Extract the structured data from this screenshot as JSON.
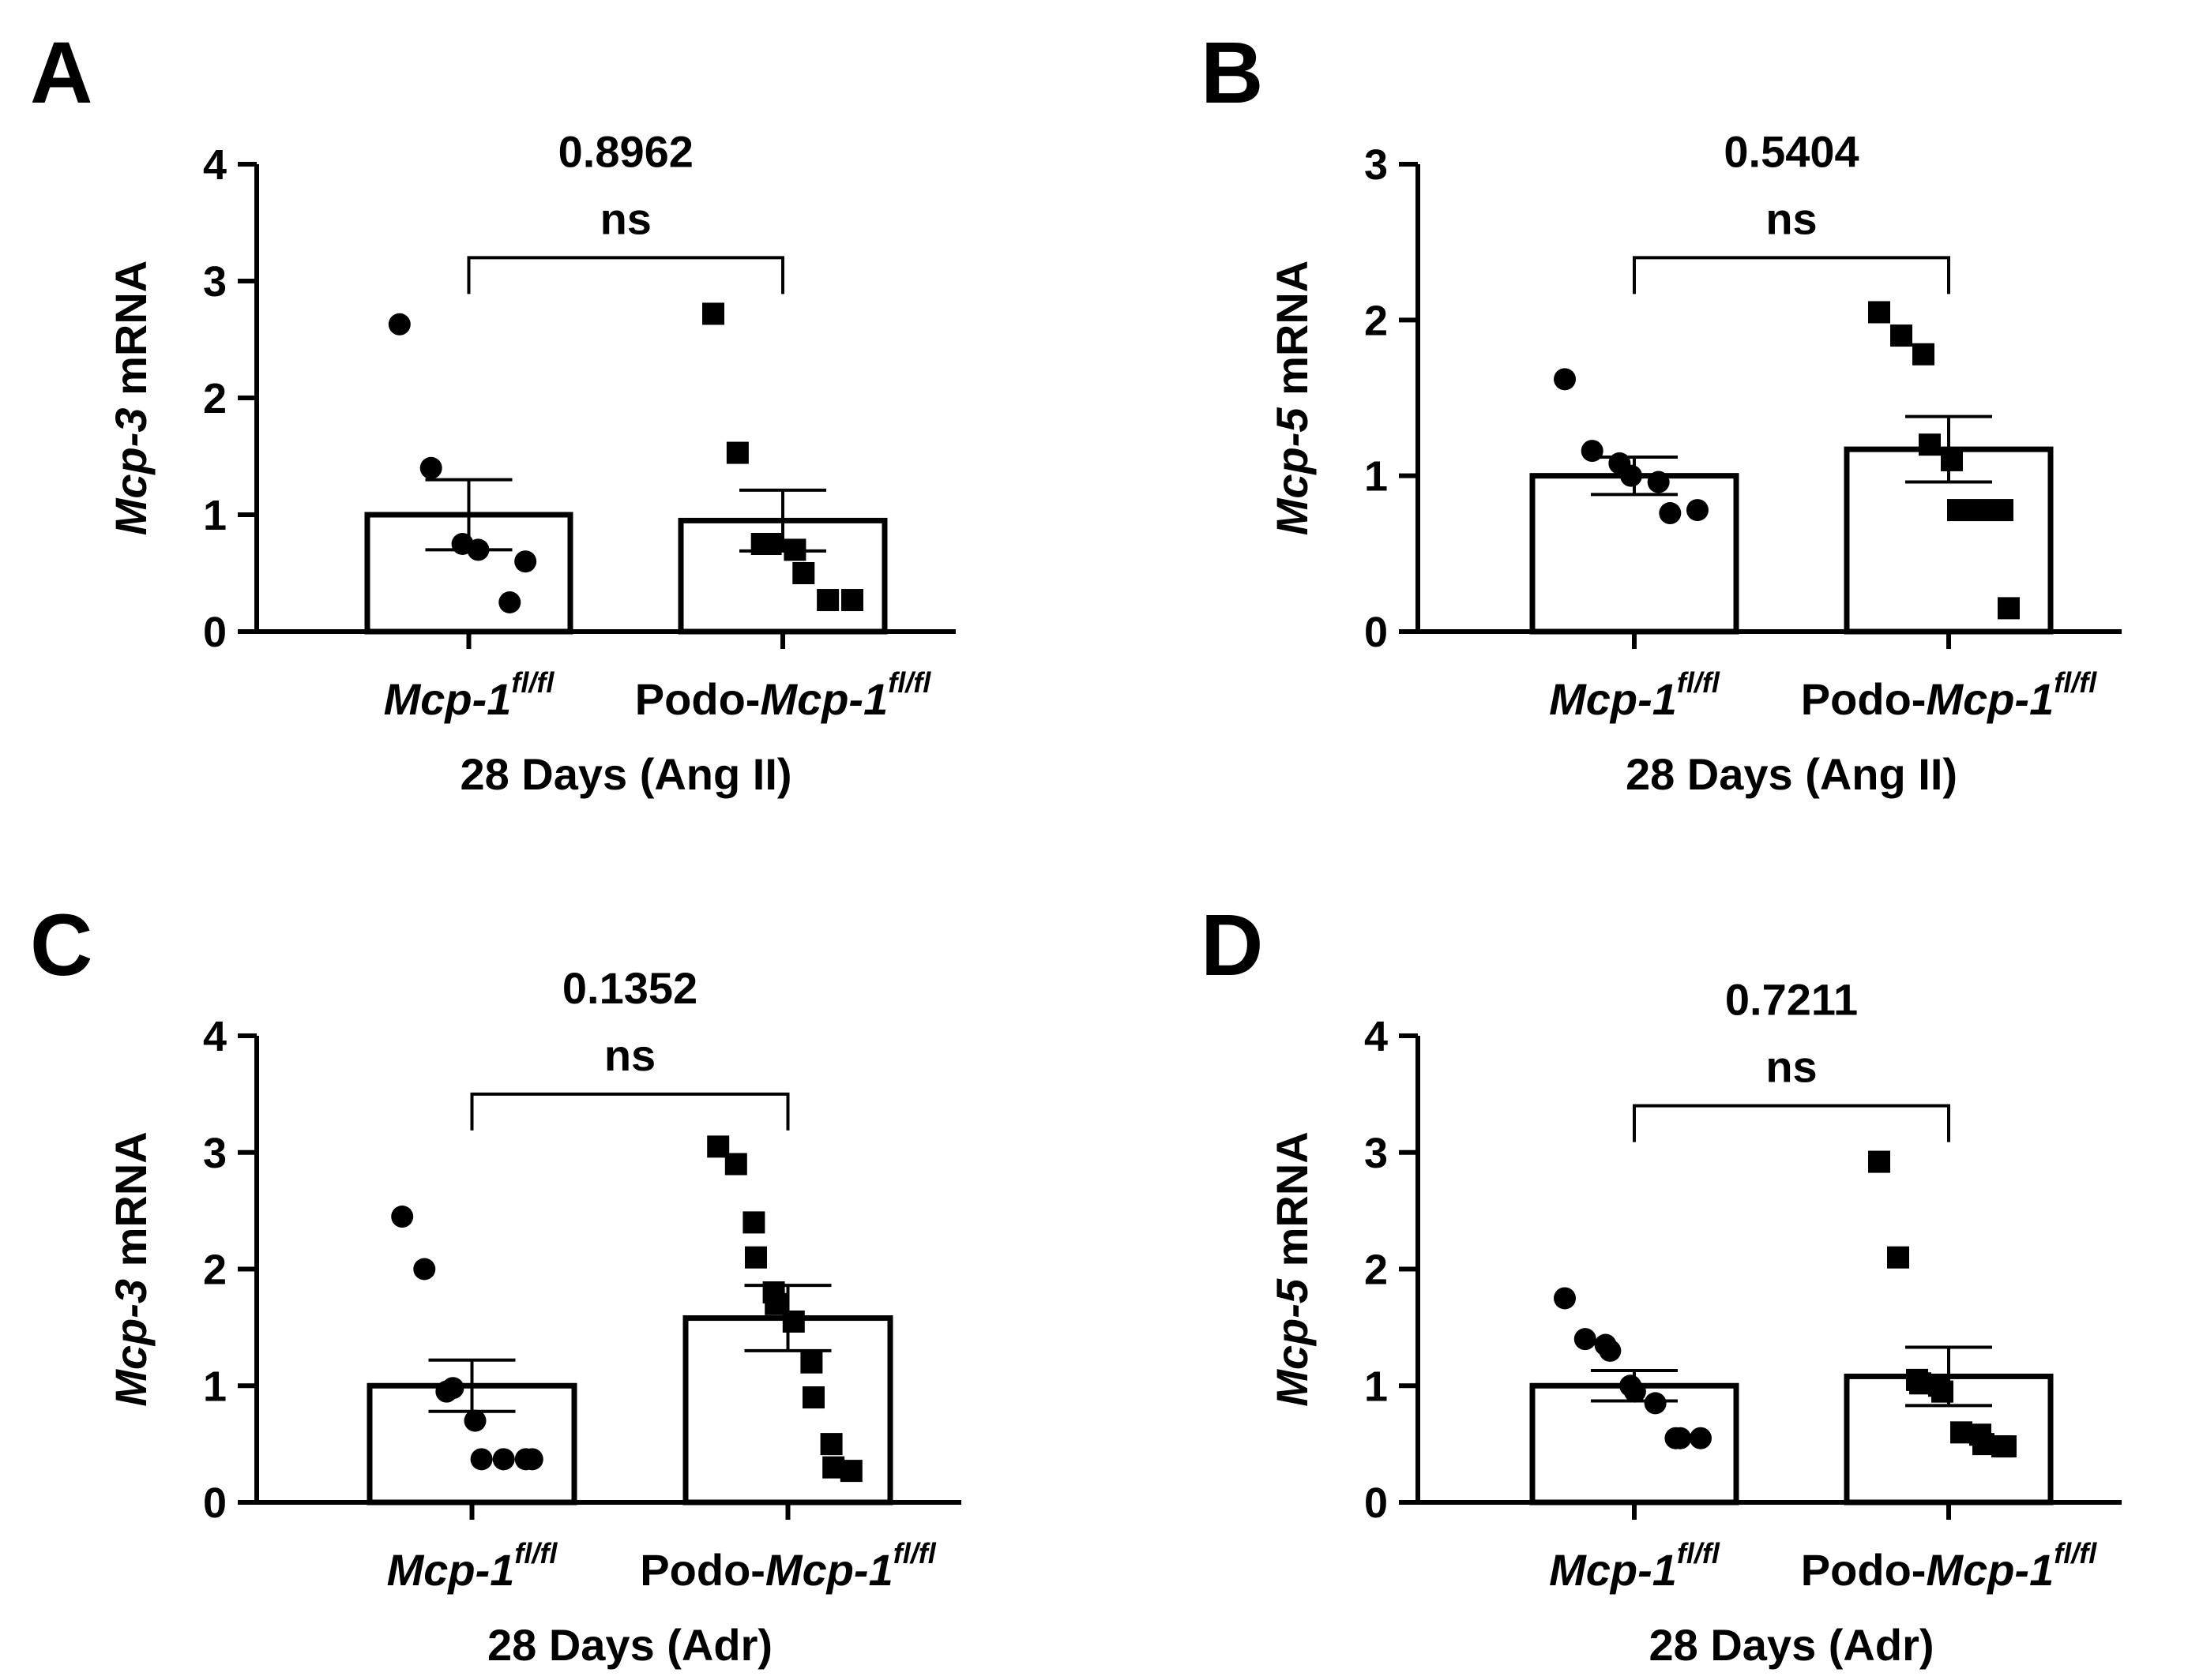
{
  "colors": {
    "ink": "#000000",
    "bar_fill": "#ffffff"
  },
  "chart_data": [
    {
      "type": "bar",
      "panel": "A",
      "title": "28 Days (Ang II)",
      "ylabel_gene": "Mcp-3",
      "ylabel_suffix": " mRNA",
      "ylim": [
        0,
        4
      ],
      "yticks": [
        "0",
        "1",
        "2",
        "3",
        "4"
      ],
      "categories": [
        {
          "pre": "",
          "ital": "Mcp-1",
          "sup": "fl/fl"
        },
        {
          "pre": "Podo-",
          "ital": "Mcp-1",
          "sup": "fl/fl"
        }
      ],
      "series": [
        {
          "name": "Mcp-1fl/fl",
          "marker": "circle",
          "mean": 1.0,
          "sem": 0.3,
          "points": [
            2.63,
            1.4,
            0.75,
            0.7,
            0.25,
            0.6
          ]
        },
        {
          "name": "Podo-Mcp-1fl/fl",
          "marker": "square",
          "mean": 0.95,
          "sem": 0.26,
          "points": [
            2.72,
            1.53,
            0.75,
            0.75,
            0.7,
            0.5,
            0.27,
            0.27
          ]
        }
      ],
      "p_value": "0.8962",
      "significance": "ns",
      "bracket_y": 3.2
    },
    {
      "type": "bar",
      "panel": "B",
      "title": "28 Days (Ang II)",
      "ylabel_gene": "Mcp-5",
      "ylabel_suffix": " mRNA",
      "ylim": [
        0,
        3
      ],
      "yticks": [
        "0",
        "1",
        "2",
        "3"
      ],
      "categories": [
        {
          "pre": "",
          "ital": "Mcp-1",
          "sup": "fl/fl"
        },
        {
          "pre": "Podo-",
          "ital": "Mcp-1",
          "sup": "fl/fl"
        }
      ],
      "series": [
        {
          "name": "Mcp-1fl/fl",
          "marker": "circle",
          "mean": 1.0,
          "sem": 0.12,
          "points": [
            1.62,
            1.16,
            1.08,
            1.0,
            0.96,
            0.76,
            0.78
          ]
        },
        {
          "name": "Podo-Mcp-1fl/fl",
          "marker": "square",
          "mean": 1.17,
          "sem": 0.21,
          "points": [
            2.05,
            1.9,
            1.78,
            1.2,
            1.1,
            0.78,
            0.78,
            0.78,
            0.15
          ]
        }
      ],
      "p_value": "0.5404",
      "significance": "ns",
      "bracket_y": 2.4
    },
    {
      "type": "bar",
      "panel": "C",
      "title": "28 Days (Adr)",
      "ylabel_gene": "Mcp-3",
      "ylabel_suffix": " mRNA",
      "ylim": [
        0,
        4
      ],
      "yticks": [
        "0",
        "1",
        "2",
        "3",
        "4"
      ],
      "categories": [
        {
          "pre": "",
          "ital": "Mcp-1",
          "sup": "fl/fl"
        },
        {
          "pre": "Podo-",
          "ital": "Mcp-1",
          "sup": "fl/fl"
        }
      ],
      "series": [
        {
          "name": "Mcp-1fl/fl",
          "marker": "circle",
          "mean": 1.0,
          "sem": 0.22,
          "points": [
            2.45,
            2.0,
            0.95,
            0.98,
            0.7,
            0.37,
            0.37,
            0.37,
            0.37
          ]
        },
        {
          "name": "Podo-Mcp-1fl/fl",
          "marker": "square",
          "mean": 1.58,
          "sem": 0.28,
          "points": [
            3.05,
            2.9,
            2.4,
            2.1,
            1.8,
            1.7,
            1.55,
            1.2,
            0.9,
            0.5,
            0.3,
            0.27
          ]
        }
      ],
      "p_value": "0.1352",
      "significance": "ns",
      "bracket_y": 3.5
    },
    {
      "type": "bar",
      "panel": "D",
      "title": "28 Days (Adr)",
      "ylabel_gene": "Mcp-5",
      "ylabel_suffix": " mRNA",
      "ylim": [
        0,
        4
      ],
      "yticks": [
        "0",
        "1",
        "2",
        "3",
        "4"
      ],
      "categories": [
        {
          "pre": "",
          "ital": "Mcp-1",
          "sup": "fl/fl"
        },
        {
          "pre": "Podo-",
          "ital": "Mcp-1",
          "sup": "fl/fl"
        }
      ],
      "series": [
        {
          "name": "Mcp-1fl/fl",
          "marker": "circle",
          "mean": 1.0,
          "sem": 0.13,
          "points": [
            1.75,
            1.4,
            1.35,
            1.3,
            1.0,
            0.95,
            0.85,
            0.55,
            0.55,
            0.55
          ]
        },
        {
          "name": "Podo-Mcp-1fl/fl",
          "marker": "square",
          "mean": 1.08,
          "sem": 0.25,
          "points": [
            2.92,
            2.1,
            1.05,
            1.02,
            1.0,
            0.95,
            0.6,
            0.58,
            0.5,
            0.48,
            0.48
          ]
        }
      ],
      "p_value": "0.7211",
      "significance": "ns",
      "bracket_y": 3.4
    }
  ]
}
